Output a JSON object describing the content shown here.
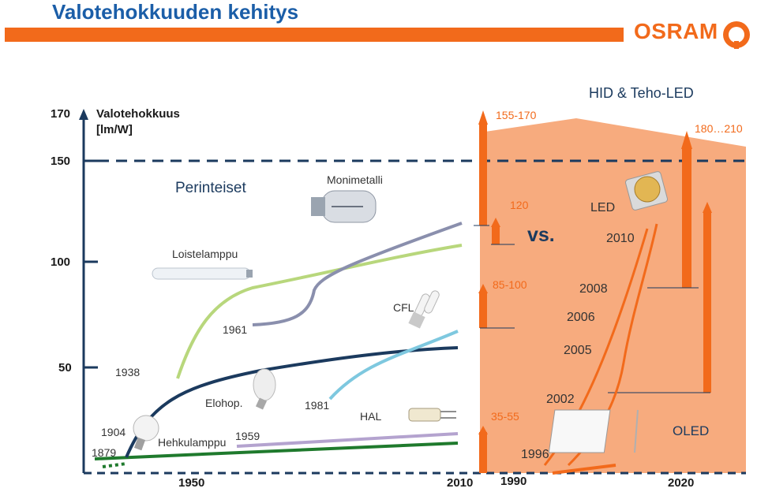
{
  "title": "Valotehokkuuden kehitys",
  "logo_text": "OSRAM",
  "y_axis": {
    "label_line1": "Valotehokkuus",
    "label_line2": "[lm/W]",
    "ticks": [
      "170",
      "150",
      "100",
      "50"
    ]
  },
  "x_axis": {
    "left_ticks": [
      "1950",
      "2010"
    ],
    "right_ticks": [
      "1990",
      "2020"
    ]
  },
  "headings": {
    "traditional": "Perinteiset",
    "hid_led": "HID & Teho-LED",
    "vs": "vs."
  },
  "technologies": {
    "metal_halide": "Monimetalli",
    "fluorescent": "Loistelamppu",
    "cfl": "CFL",
    "mercury": "Elohop.",
    "incandescent": "Hehkulamppu",
    "halogen": "HAL",
    "led": "LED",
    "oled": "OLED"
  },
  "years": {
    "y1879": "1879",
    "y1904": "1904",
    "y1938": "1938",
    "y1959": "1959",
    "y1961": "1961",
    "y1981": "1981",
    "y1996": "1996",
    "y2002": "2002",
    "y2005": "2005",
    "y2006": "2006",
    "y2008": "2008",
    "y2010": "2010"
  },
  "ranges": {
    "r155_170": "155-170",
    "r120": "120",
    "r85_100": "85-100",
    "r35_55": "35-55",
    "r180_210": "180…210"
  },
  "colors": {
    "title_blue": "#1b5ea8",
    "brand_orange": "#f26a1b",
    "panel_orange": "#f7ab7e",
    "fluorescent_green": "#b8d77c",
    "metal_halide_grey": "#8a8fad",
    "cfl_cyan": "#7ec8df",
    "mercury_navy": "#1b3a5e",
    "incandescent_green": "#1f7a2d",
    "halogen_purple": "#b4a3cf"
  }
}
